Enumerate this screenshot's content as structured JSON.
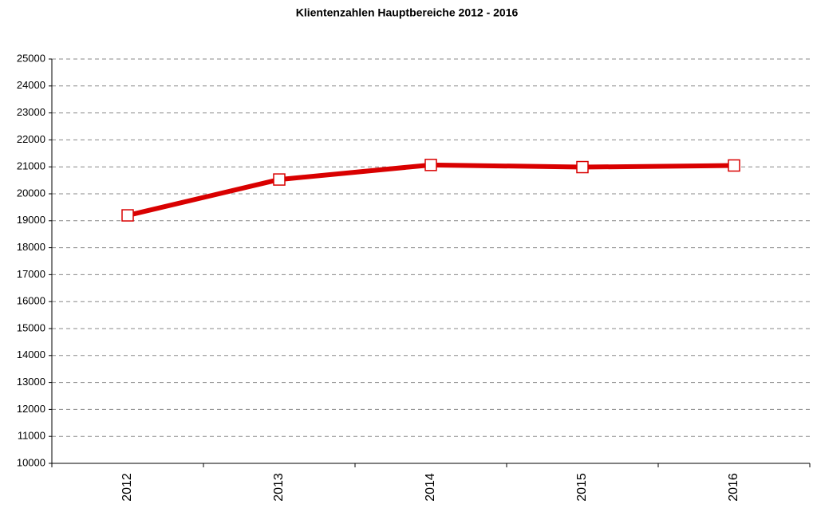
{
  "chart_data": {
    "type": "line",
    "title": "Klientenzahlen Hauptbereiche 2012 - 2016",
    "categories": [
      "2012",
      "2013",
      "2014",
      "2015",
      "2016"
    ],
    "values": [
      19200,
      20530,
      21070,
      20990,
      21050
    ],
    "color": "#d90000",
    "ylim": [
      10000,
      25000
    ],
    "yticks": [
      10000,
      11000,
      12000,
      13000,
      14000,
      15000,
      16000,
      17000,
      18000,
      19000,
      20000,
      21000,
      22000,
      23000,
      24000,
      25000
    ],
    "grid": true
  }
}
